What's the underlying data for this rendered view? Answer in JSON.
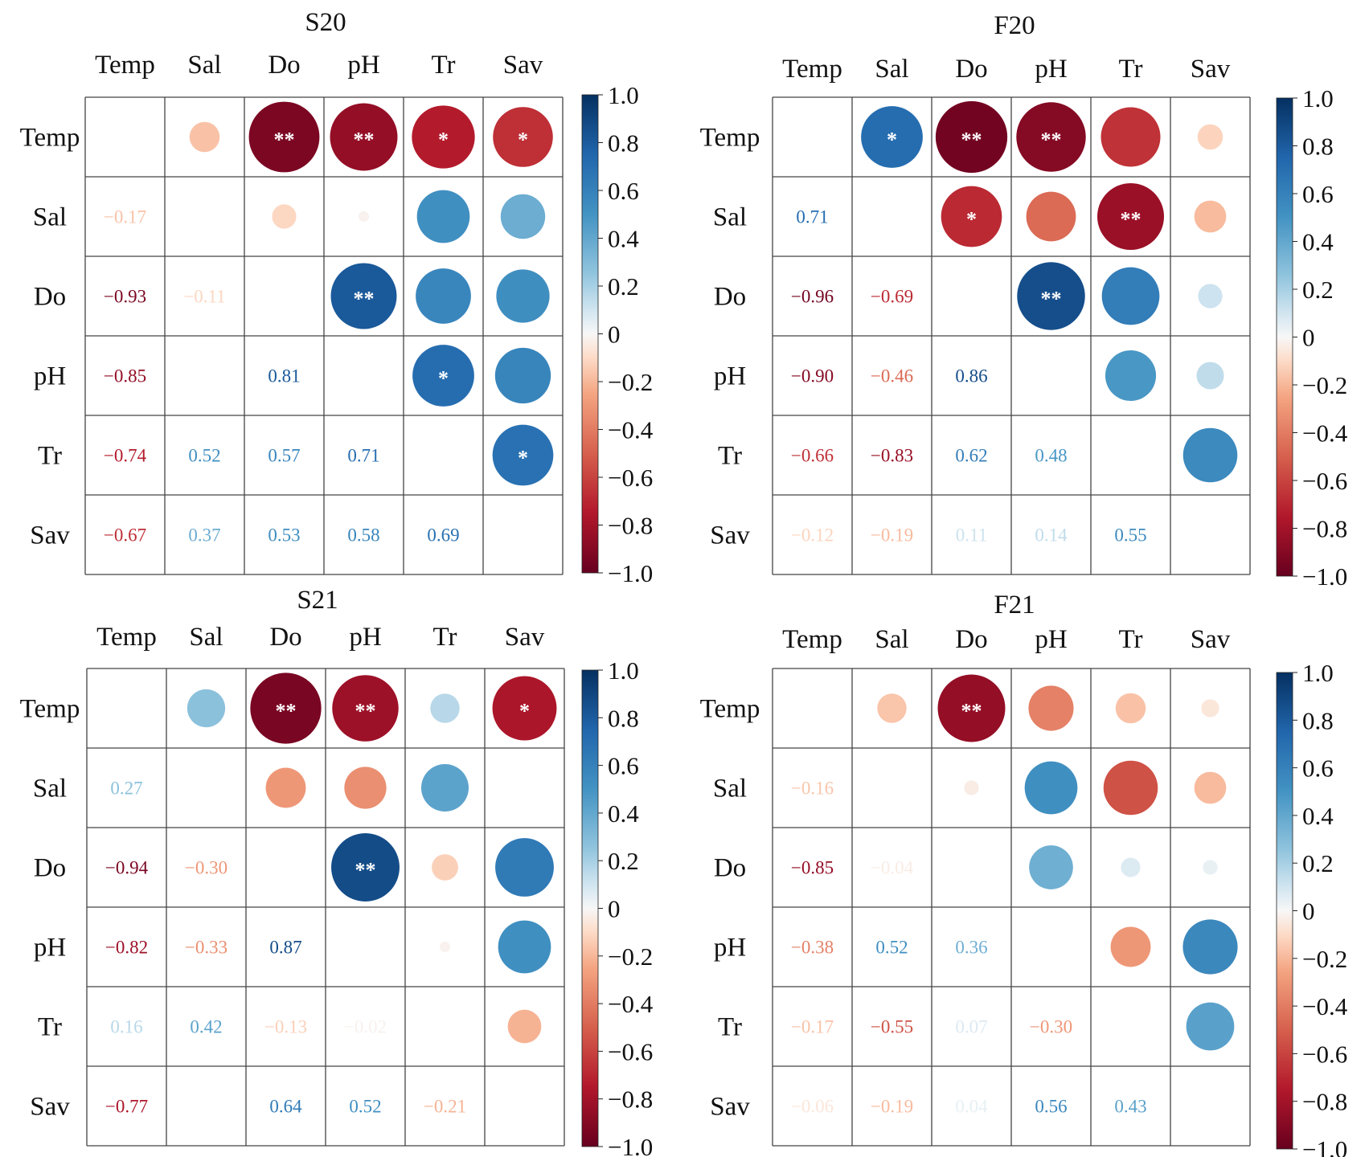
{
  "chart_data": [
    {
      "type": "heatmap",
      "title": "S20",
      "variables": [
        "Temp",
        "Sal",
        "Do",
        "pH",
        "Tr",
        "Sav"
      ],
      "matrix": [
        [
          1,
          -0.17,
          -0.93,
          -0.85,
          -0.74,
          -0.67
        ],
        [
          -0.17,
          1,
          -0.11,
          -0.02,
          0.52,
          0.37
        ],
        [
          -0.93,
          -0.11,
          1,
          0.81,
          0.57,
          0.53
        ],
        [
          -0.85,
          -0.02,
          0.81,
          1,
          0.71,
          0.58
        ],
        [
          -0.74,
          0.52,
          0.57,
          0.71,
          1,
          0.69
        ],
        [
          -0.67,
          0.37,
          0.53,
          0.58,
          0.69,
          1
        ]
      ],
      "lower_labels": [
        {
          "row": 1,
          "col": 0,
          "text": "−0.17"
        },
        {
          "row": 2,
          "col": 0,
          "text": "−0.93"
        },
        {
          "row": 2,
          "col": 1,
          "text": "−0.11"
        },
        {
          "row": 3,
          "col": 0,
          "text": "−0.85"
        },
        {
          "row": 3,
          "col": 2,
          "text": "0.81"
        },
        {
          "row": 4,
          "col": 0,
          "text": "−0.74"
        },
        {
          "row": 4,
          "col": 1,
          "text": "0.52"
        },
        {
          "row": 4,
          "col": 2,
          "text": "0.57"
        },
        {
          "row": 4,
          "col": 3,
          "text": "0.71"
        },
        {
          "row": 5,
          "col": 0,
          "text": "−0.67"
        },
        {
          "row": 5,
          "col": 1,
          "text": "0.37"
        },
        {
          "row": 5,
          "col": 2,
          "text": "0.53"
        },
        {
          "row": 5,
          "col": 3,
          "text": "0.58"
        },
        {
          "row": 5,
          "col": 4,
          "text": "0.69"
        }
      ],
      "significance": [
        {
          "row": 0,
          "col": 2,
          "text": "**"
        },
        {
          "row": 0,
          "col": 3,
          "text": "**"
        },
        {
          "row": 0,
          "col": 4,
          "text": "*"
        },
        {
          "row": 0,
          "col": 5,
          "text": "*"
        },
        {
          "row": 2,
          "col": 3,
          "text": "**"
        },
        {
          "row": 3,
          "col": 4,
          "text": "*"
        },
        {
          "row": 4,
          "col": 5,
          "text": "*"
        }
      ]
    },
    {
      "type": "heatmap",
      "title": "F20",
      "variables": [
        "Temp",
        "Sal",
        "Do",
        "pH",
        "Tr",
        "Sav"
      ],
      "matrix": [
        [
          1,
          0.71,
          -0.96,
          -0.9,
          -0.66,
          -0.12
        ],
        [
          0.71,
          1,
          -0.69,
          -0.46,
          -0.83,
          -0.19
        ],
        [
          -0.96,
          -0.69,
          1,
          0.86,
          0.62,
          0.11
        ],
        [
          -0.9,
          -0.46,
          0.86,
          1,
          0.48,
          0.14
        ],
        [
          -0.66,
          -0.83,
          0.62,
          0.48,
          1,
          0.55
        ],
        [
          -0.12,
          -0.19,
          0.11,
          0.14,
          0.55,
          1
        ]
      ],
      "lower_labels": [
        {
          "row": 1,
          "col": 0,
          "text": "0.71"
        },
        {
          "row": 2,
          "col": 0,
          "text": "−0.96"
        },
        {
          "row": 2,
          "col": 1,
          "text": "−0.69"
        },
        {
          "row": 3,
          "col": 0,
          "text": "−0.90"
        },
        {
          "row": 3,
          "col": 1,
          "text": "−0.46"
        },
        {
          "row": 3,
          "col": 2,
          "text": "0.86"
        },
        {
          "row": 4,
          "col": 0,
          "text": "−0.66"
        },
        {
          "row": 4,
          "col": 1,
          "text": "−0.83"
        },
        {
          "row": 4,
          "col": 2,
          "text": "0.62"
        },
        {
          "row": 4,
          "col": 3,
          "text": "0.48"
        },
        {
          "row": 5,
          "col": 0,
          "text": "−0.12"
        },
        {
          "row": 5,
          "col": 1,
          "text": "−0.19"
        },
        {
          "row": 5,
          "col": 2,
          "text": "0.11"
        },
        {
          "row": 5,
          "col": 3,
          "text": "0.14"
        },
        {
          "row": 5,
          "col": 4,
          "text": "0.55"
        }
      ],
      "significance": [
        {
          "row": 0,
          "col": 1,
          "text": "*"
        },
        {
          "row": 0,
          "col": 2,
          "text": "**"
        },
        {
          "row": 0,
          "col": 3,
          "text": "**"
        },
        {
          "row": 1,
          "col": 2,
          "text": "*"
        },
        {
          "row": 1,
          "col": 4,
          "text": "**"
        },
        {
          "row": 2,
          "col": 3,
          "text": "**"
        }
      ]
    },
    {
      "type": "heatmap",
      "title": "S21",
      "variables": [
        "Temp",
        "Sal",
        "Do",
        "pH",
        "Tr",
        "Sav"
      ],
      "matrix": [
        [
          1,
          0.27,
          -0.94,
          -0.82,
          0.16,
          -0.77
        ],
        [
          0.27,
          1,
          -0.3,
          -0.33,
          0.42,
          0.0
        ],
        [
          -0.94,
          -0.3,
          1,
          0.87,
          -0.13,
          0.64
        ],
        [
          -0.82,
          -0.33,
          0.87,
          1,
          -0.02,
          0.52
        ],
        [
          0.16,
          0.42,
          -0.13,
          -0.02,
          1,
          -0.21
        ],
        [
          -0.77,
          0.0,
          0.64,
          0.52,
          -0.21,
          1
        ]
      ],
      "lower_labels": [
        {
          "row": 1,
          "col": 0,
          "text": "0.27"
        },
        {
          "row": 2,
          "col": 0,
          "text": "−0.94"
        },
        {
          "row": 2,
          "col": 1,
          "text": "−0.30"
        },
        {
          "row": 3,
          "col": 0,
          "text": "−0.82"
        },
        {
          "row": 3,
          "col": 1,
          "text": "−0.33"
        },
        {
          "row": 3,
          "col": 2,
          "text": "0.87"
        },
        {
          "row": 4,
          "col": 0,
          "text": "0.16"
        },
        {
          "row": 4,
          "col": 1,
          "text": "0.42"
        },
        {
          "row": 4,
          "col": 2,
          "text": "−0.13"
        },
        {
          "row": 4,
          "col": 3,
          "text": "−0.02"
        },
        {
          "row": 5,
          "col": 0,
          "text": "−0.77"
        },
        {
          "row": 5,
          "col": 2,
          "text": "0.64"
        },
        {
          "row": 5,
          "col": 3,
          "text": "0.52"
        },
        {
          "row": 5,
          "col": 4,
          "text": "−0.21"
        }
      ],
      "significance": [
        {
          "row": 0,
          "col": 2,
          "text": "**"
        },
        {
          "row": 0,
          "col": 3,
          "text": "**"
        },
        {
          "row": 0,
          "col": 5,
          "text": "*"
        },
        {
          "row": 2,
          "col": 3,
          "text": "**"
        }
      ]
    },
    {
      "type": "heatmap",
      "title": "F21",
      "variables": [
        "Temp",
        "Sal",
        "Do",
        "pH",
        "Tr",
        "Sav"
      ],
      "matrix": [
        [
          1,
          -0.16,
          -0.85,
          -0.38,
          -0.17,
          -0.06
        ],
        [
          -0.16,
          1,
          -0.04,
          0.52,
          -0.55,
          -0.19
        ],
        [
          -0.85,
          -0.04,
          1,
          0.36,
          0.07,
          0.04
        ],
        [
          -0.38,
          0.52,
          0.36,
          1,
          -0.3,
          0.56
        ],
        [
          -0.17,
          -0.55,
          0.07,
          -0.3,
          1,
          0.43
        ],
        [
          -0.06,
          -0.19,
          0.04,
          0.56,
          0.43,
          1
        ]
      ],
      "lower_labels": [
        {
          "row": 1,
          "col": 0,
          "text": "−0.16"
        },
        {
          "row": 2,
          "col": 0,
          "text": "−0.85"
        },
        {
          "row": 2,
          "col": 1,
          "text": "−0.04"
        },
        {
          "row": 3,
          "col": 0,
          "text": "−0.38"
        },
        {
          "row": 3,
          "col": 1,
          "text": "0.52"
        },
        {
          "row": 3,
          "col": 2,
          "text": "0.36"
        },
        {
          "row": 4,
          "col": 0,
          "text": "−0.17"
        },
        {
          "row": 4,
          "col": 1,
          "text": "−0.55"
        },
        {
          "row": 4,
          "col": 2,
          "text": "0.07"
        },
        {
          "row": 4,
          "col": 3,
          "text": "−0.30"
        },
        {
          "row": 5,
          "col": 0,
          "text": "−0.06"
        },
        {
          "row": 5,
          "col": 1,
          "text": "−0.19"
        },
        {
          "row": 5,
          "col": 2,
          "text": "0.04"
        },
        {
          "row": 5,
          "col": 3,
          "text": "0.56"
        },
        {
          "row": 5,
          "col": 4,
          "text": "0.43"
        }
      ],
      "significance": [
        {
          "row": 0,
          "col": 2,
          "text": "**"
        }
      ]
    }
  ],
  "colorbar": {
    "range": [
      -1.0,
      1.0
    ],
    "ticks": [
      "1.0",
      "0.8",
      "0.6",
      "0.4",
      "0.2",
      "0",
      "−0.2",
      "−0.4",
      "−0.6",
      "−0.8",
      "−1.0"
    ],
    "colors": {
      "neg_strong": "#67001f",
      "neg_mid": "#d6604d",
      "neutral": "#f7f7f7",
      "pos_mid": "#4393c3",
      "pos_strong": "#053061"
    }
  }
}
